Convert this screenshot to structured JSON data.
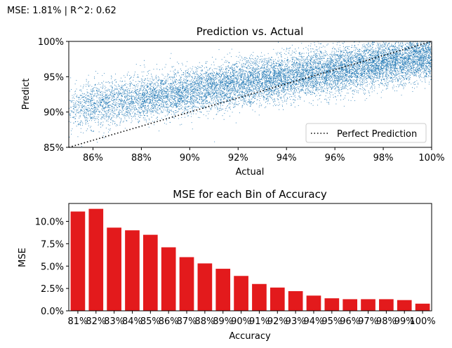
{
  "figure": {
    "suptitle": "MSE: 1.81% | R^2: 0.62"
  },
  "chart_data": [
    {
      "type": "scatter",
      "title": "Prediction vs. Actual",
      "xlabel": "Actual",
      "ylabel": "Predict",
      "xlim": [
        0.85,
        1.0
      ],
      "ylim": [
        0.85,
        1.0
      ],
      "x_ticks": [
        {
          "value": 0.86,
          "label": "86%"
        },
        {
          "value": 0.88,
          "label": "88%"
        },
        {
          "value": 0.9,
          "label": "90%"
        },
        {
          "value": 0.92,
          "label": "92%"
        },
        {
          "value": 0.94,
          "label": "94%"
        },
        {
          "value": 0.96,
          "label": "96%"
        },
        {
          "value": 0.98,
          "label": "98%"
        },
        {
          "value": 1.0,
          "label": "100%"
        }
      ],
      "y_ticks": [
        {
          "value": 0.85,
          "label": "85%"
        },
        {
          "value": 0.9,
          "label": "90%"
        },
        {
          "value": 0.95,
          "label": "95%"
        },
        {
          "value": 1.0,
          "label": "100%"
        }
      ],
      "point_color": "#1f77b4",
      "point_trend": {
        "slope": 0.5,
        "intercept": 0.48
      },
      "reference_line": {
        "name": "Perfect Prediction",
        "x": [
          0.85,
          1.0
        ],
        "y": [
          0.85,
          1.0
        ],
        "style": "dotted",
        "color": "#000000"
      },
      "legend": {
        "position": "lower-right",
        "entries": [
          "Perfect Prediction"
        ]
      },
      "grid": false
    },
    {
      "type": "bar",
      "title": "MSE for each Bin of Accuracy",
      "xlabel": "Accuracy",
      "ylabel": "MSE",
      "categories": [
        "81%",
        "82%",
        "83%",
        "84%",
        "85%",
        "86%",
        "87%",
        "88%",
        "89%",
        "90%",
        "91%",
        "92%",
        "93%",
        "94%",
        "95%",
        "96%",
        "97%",
        "98%",
        "99%",
        "100%"
      ],
      "values": [
        0.111,
        0.114,
        0.093,
        0.09,
        0.085,
        0.071,
        0.06,
        0.053,
        0.047,
        0.039,
        0.03,
        0.026,
        0.022,
        0.017,
        0.014,
        0.013,
        0.013,
        0.013,
        0.012,
        0.008
      ],
      "ylim": [
        0.0,
        0.12
      ],
      "y_ticks": [
        {
          "value": 0.0,
          "label": "0.0%"
        },
        {
          "value": 0.025,
          "label": "2.5%"
        },
        {
          "value": 0.05,
          "label": "5.0%"
        },
        {
          "value": 0.075,
          "label": "7.5%"
        },
        {
          "value": 0.1,
          "label": "10.0%"
        }
      ],
      "bar_color": "#e31a1c",
      "grid": false
    }
  ]
}
